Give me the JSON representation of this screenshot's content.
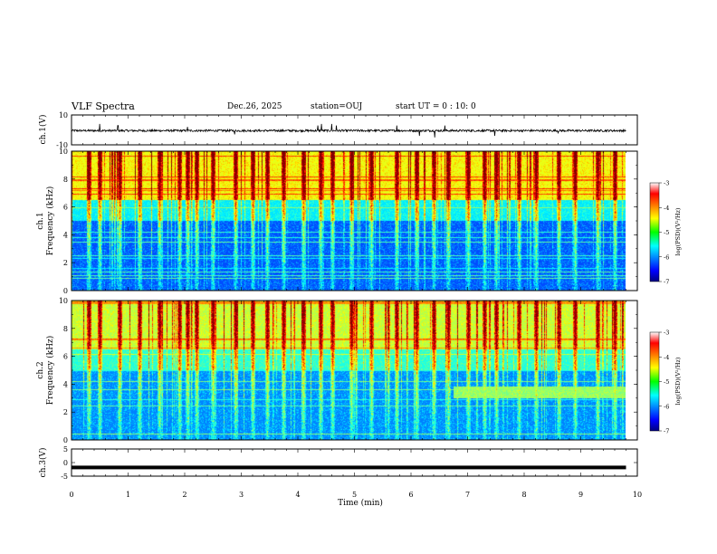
{
  "header": {
    "title": "VLF Spectra",
    "date": "Dec.26, 2025",
    "station": "station=OUJ",
    "start_ut": "start UT =  0 : 10: 0"
  },
  "chart_data": [
    {
      "type": "line",
      "name": "ch1-waveform",
      "ylabel": "ch.1(V)",
      "ylim": [
        -10,
        10
      ],
      "yticks": [
        "10",
        "-10"
      ],
      "baseline_v": 0,
      "noise_band_v": [
        -1.2,
        0.2
      ],
      "spike_times_min": [
        0.5,
        0.82,
        2.05,
        2.88,
        4.35,
        4.42,
        4.6,
        4.68,
        5.75,
        6.15,
        6.42,
        6.6,
        7.48,
        8.6
      ],
      "spike_amplitudes_v": [
        4,
        3,
        2,
        -3,
        3,
        4,
        4,
        3,
        3,
        -4,
        -5,
        3,
        -4,
        -2
      ]
    },
    {
      "type": "heatmap",
      "name": "ch1-spectrogram",
      "ylabel": "ch.1",
      "ylabel2": "Frequency (kHz)",
      "ylim": [
        0,
        10
      ],
      "yticks": [
        "0",
        "2",
        "4",
        "6",
        "8",
        "10"
      ],
      "cmin": -7,
      "cmax": -3,
      "colorbar_label": "log(PSD)(V²/Hz)",
      "colorbar_ticks": [
        "-3",
        "-4",
        "-5",
        "-6",
        "-7"
      ],
      "background_band_log_psd": [
        {
          "from_khz": 0,
          "to_khz": 5,
          "value": -6.2
        },
        {
          "from_khz": 5,
          "to_khz": 6.5,
          "value": -5.6
        },
        {
          "from_khz": 6.5,
          "to_khz": 10,
          "value": -4.6
        }
      ],
      "sferic_times_min": [
        0.3,
        0.5,
        0.85,
        1.2,
        1.55,
        1.9,
        2.05,
        2.2,
        2.5,
        2.9,
        3.2,
        3.45,
        3.75,
        4.1,
        4.4,
        4.6,
        4.95,
        5.3,
        5.75,
        6.1,
        6.4,
        6.65,
        7.0,
        7.3,
        7.5,
        7.9,
        8.2,
        8.6,
        8.9,
        9.3,
        9.6
      ]
    },
    {
      "type": "heatmap",
      "name": "ch2-spectrogram",
      "ylabel": "ch.2",
      "ylabel2": "Frequency (kHz)",
      "ylim": [
        0,
        10
      ],
      "yticks": [
        "0",
        "2",
        "4",
        "6",
        "8",
        "10"
      ],
      "cmin": -7,
      "cmax": -3,
      "colorbar_label": "log(PSD)(V²/Hz)",
      "colorbar_ticks": [
        "-3",
        "-4",
        "-5",
        "-6",
        "-7"
      ],
      "background_band_log_psd": [
        {
          "from_khz": 0,
          "to_khz": 5,
          "value": -6.0
        },
        {
          "from_khz": 5,
          "to_khz": 6.5,
          "value": -5.4
        },
        {
          "from_khz": 6.5,
          "to_khz": 10,
          "value": -4.8
        }
      ],
      "enhanced_band": {
        "from_min": 6.75,
        "to_min": 9.8,
        "from_khz": 3.0,
        "to_khz": 3.8,
        "value": -4.9
      },
      "sferic_times_min": [
        0.3,
        0.5,
        0.85,
        1.2,
        1.55,
        1.9,
        2.05,
        2.2,
        2.5,
        2.9,
        3.2,
        3.45,
        3.75,
        4.1,
        4.4,
        4.6,
        4.95,
        5.3,
        5.75,
        6.1,
        6.4,
        6.65,
        7.0,
        7.3,
        7.5,
        7.9,
        8.2,
        8.6,
        8.9,
        9.3,
        9.6
      ]
    },
    {
      "type": "line",
      "name": "ch3-waveform",
      "ylabel": "ch.3(V)",
      "ylim": [
        -5,
        5
      ],
      "yticks": [
        "5",
        "0",
        "-5"
      ],
      "value_v": -1.8
    }
  ],
  "xaxis": {
    "label": "Time (min)",
    "xlim": [
      0,
      10
    ],
    "data_extent_min": 9.8,
    "ticks": [
      "0",
      "1",
      "2",
      "3",
      "4",
      "5",
      "6",
      "7",
      "8",
      "9",
      "10"
    ]
  }
}
